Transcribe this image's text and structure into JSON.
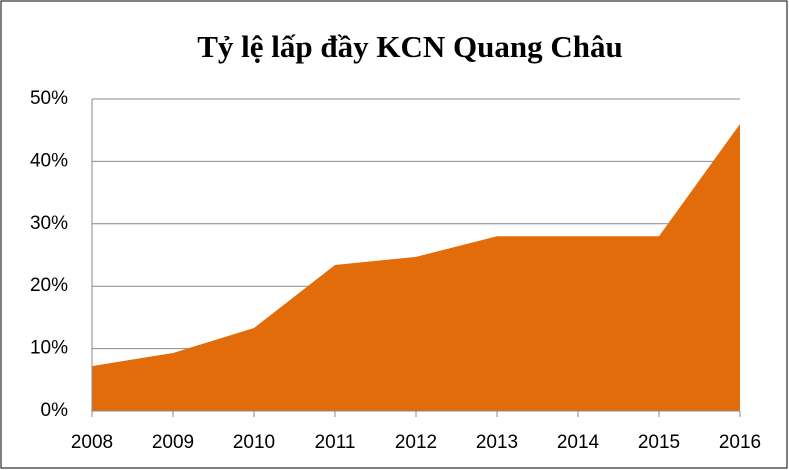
{
  "chart_data": {
    "type": "area",
    "title": "Tỷ lệ lấp đầy KCN Quang Châu",
    "categories": [
      "2008",
      "2009",
      "2010",
      "2011",
      "2012",
      "2013",
      "2014",
      "2015",
      "2016"
    ],
    "values": [
      7.2,
      9.3,
      13.3,
      23.4,
      24.7,
      28,
      28,
      28,
      46
    ],
    "color": "#e36c0a",
    "ylim": [
      0,
      50
    ],
    "yticks": [
      {
        "value": 0,
        "label": "0%"
      },
      {
        "value": 10,
        "label": "10%"
      },
      {
        "value": 20,
        "label": "20%"
      },
      {
        "value": 30,
        "label": "30%"
      },
      {
        "value": 40,
        "label": "40%"
      },
      {
        "value": 50,
        "label": "50%"
      }
    ],
    "grid": true
  }
}
